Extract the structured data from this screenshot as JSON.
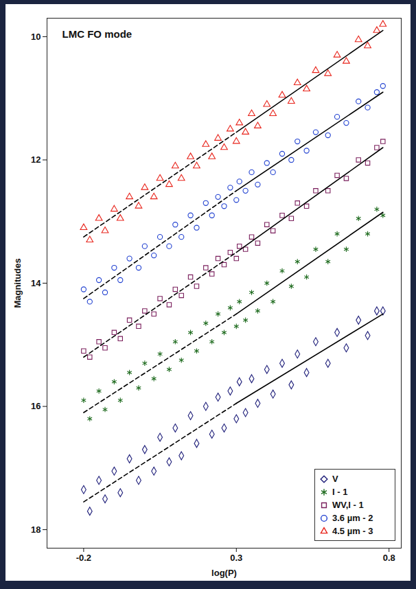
{
  "chart_data": {
    "type": "scatter",
    "title": "LMC FO mode",
    "x_label": "log(P)",
    "y_label": "Magnitudes",
    "xlim": [
      -0.32,
      0.84
    ],
    "xticks": [
      -0.2,
      0.3,
      0.8
    ],
    "ylim": [
      18.3,
      9.7
    ],
    "yticks": [
      10,
      12,
      14,
      16,
      18
    ],
    "grid": false,
    "legend": "bottom-right",
    "x": [
      -0.2,
      -0.18,
      -0.15,
      -0.13,
      -0.1,
      -0.08,
      -0.05,
      -0.02,
      0.0,
      0.03,
      0.05,
      0.08,
      0.1,
      0.12,
      0.15,
      0.17,
      0.2,
      0.22,
      0.24,
      0.26,
      0.28,
      0.3,
      0.31,
      0.33,
      0.35,
      0.37,
      0.4,
      0.42,
      0.45,
      0.48,
      0.5,
      0.53,
      0.56,
      0.6,
      0.63,
      0.66,
      0.7,
      0.73,
      0.76,
      0.78
    ],
    "series": [
      {
        "name": "V",
        "color": "#1f1f7a",
        "marker": "diamond",
        "values": [
          17.35,
          17.7,
          17.2,
          17.5,
          17.05,
          17.4,
          16.85,
          17.2,
          16.7,
          17.05,
          16.5,
          16.9,
          16.35,
          16.8,
          16.15,
          16.6,
          16.0,
          16.45,
          15.85,
          16.35,
          15.75,
          16.2,
          15.6,
          16.1,
          15.55,
          15.95,
          15.4,
          15.8,
          15.3,
          15.65,
          15.15,
          15.45,
          14.95,
          15.3,
          14.8,
          15.05,
          14.6,
          14.85,
          14.45,
          14.45
        ]
      },
      {
        "name": "I - 1",
        "color": "#1e6b1e",
        "marker": "asterisk",
        "values": [
          15.9,
          16.2,
          15.75,
          16.05,
          15.6,
          15.9,
          15.45,
          15.7,
          15.3,
          15.55,
          15.15,
          15.4,
          14.95,
          15.25,
          14.8,
          15.1,
          14.65,
          14.95,
          14.5,
          14.8,
          14.4,
          14.7,
          14.3,
          14.6,
          14.15,
          14.45,
          14.0,
          14.3,
          13.8,
          14.05,
          13.65,
          13.9,
          13.45,
          13.65,
          13.2,
          13.45,
          12.95,
          13.2,
          12.8,
          12.9
        ]
      },
      {
        "name": "WV,I - 1",
        "color": "#7a1f5c",
        "marker": "square",
        "values": [
          15.1,
          15.2,
          14.95,
          15.05,
          14.8,
          14.9,
          14.6,
          14.7,
          14.45,
          14.5,
          14.25,
          14.35,
          14.1,
          14.2,
          13.9,
          14.05,
          13.75,
          13.85,
          13.6,
          13.7,
          13.5,
          13.6,
          13.4,
          13.45,
          13.25,
          13.35,
          13.05,
          13.15,
          12.9,
          12.95,
          12.7,
          12.75,
          12.5,
          12.5,
          12.25,
          12.3,
          12.0,
          12.05,
          11.8,
          11.7
        ]
      },
      {
        "name": "3.6 µm - 2",
        "color": "#2040d0",
        "marker": "circle",
        "values": [
          14.1,
          14.3,
          13.95,
          14.15,
          13.75,
          13.95,
          13.6,
          13.75,
          13.4,
          13.55,
          13.25,
          13.4,
          13.05,
          13.25,
          12.9,
          13.1,
          12.7,
          12.9,
          12.6,
          12.75,
          12.45,
          12.65,
          12.35,
          12.5,
          12.2,
          12.4,
          12.05,
          12.2,
          11.9,
          12.0,
          11.7,
          11.85,
          11.55,
          11.6,
          11.3,
          11.4,
          11.05,
          11.15,
          10.9,
          10.8
        ]
      },
      {
        "name": "4.5 µm - 3",
        "color": "#e8231a",
        "marker": "triangle",
        "values": [
          13.1,
          13.3,
          12.95,
          13.15,
          12.8,
          12.95,
          12.6,
          12.75,
          12.45,
          12.6,
          12.3,
          12.4,
          12.1,
          12.3,
          11.95,
          12.1,
          11.75,
          11.95,
          11.65,
          11.8,
          11.5,
          11.7,
          11.4,
          11.55,
          11.25,
          11.45,
          11.1,
          11.25,
          10.95,
          11.05,
          10.75,
          10.85,
          10.55,
          10.6,
          10.3,
          10.4,
          10.05,
          10.15,
          9.9,
          9.8
        ]
      },
      {
        "type": "line",
        "color": "#000000",
        "line_style": "dashed",
        "x": [
          -0.2,
          0.3
        ],
        "values": [
          17.55,
          15.95
        ]
      },
      {
        "type": "line",
        "color": "#000000",
        "line_style": "solid",
        "x": [
          0.3,
          0.78
        ],
        "values": [
          15.95,
          14.5
        ]
      },
      {
        "type": "line",
        "color": "#000000",
        "line_style": "dashed",
        "x": [
          -0.2,
          0.3
        ],
        "values": [
          16.1,
          14.5
        ]
      },
      {
        "type": "line",
        "color": "#000000",
        "line_style": "solid",
        "x": [
          0.3,
          0.78
        ],
        "values": [
          14.5,
          12.85
        ]
      },
      {
        "type": "line",
        "color": "#000000",
        "line_style": "dashed",
        "x": [
          -0.2,
          0.3
        ],
        "values": [
          15.2,
          13.5
        ]
      },
      {
        "type": "line",
        "color": "#000000",
        "line_style": "solid",
        "x": [
          0.3,
          0.78
        ],
        "values": [
          13.5,
          11.8
        ]
      },
      {
        "type": "line",
        "color": "#000000",
        "line_style": "dashed",
        "x": [
          -0.2,
          0.3
        ],
        "values": [
          14.25,
          12.5
        ]
      },
      {
        "type": "line",
        "color": "#000000",
        "line_style": "solid",
        "x": [
          0.3,
          0.78
        ],
        "values": [
          12.5,
          10.9
        ]
      },
      {
        "type": "line",
        "color": "#000000",
        "line_style": "dashed",
        "x": [
          -0.2,
          0.3
        ],
        "values": [
          13.25,
          11.55
        ]
      },
      {
        "type": "line",
        "color": "#000000",
        "line_style": "solid",
        "x": [
          0.3,
          0.78
        ],
        "values": [
          11.55,
          9.9
        ]
      }
    ]
  }
}
